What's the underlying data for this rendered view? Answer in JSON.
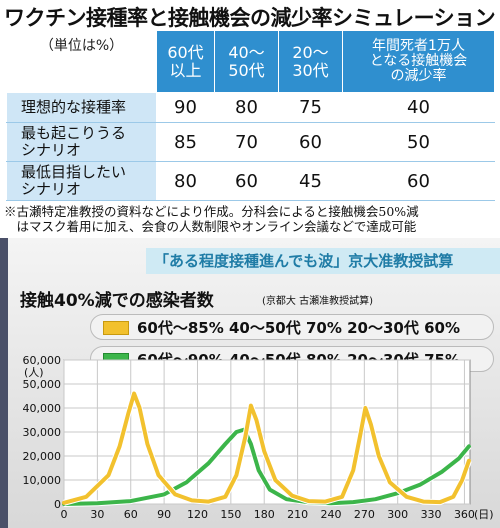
{
  "title": "ワクチン接種率と接触機会の減少率シミュレーション",
  "table": {
    "unit": "（単位は%）",
    "headers": [
      "60代\n以上",
      "40～\n50代",
      "20～\n30代",
      "年間死者1万人\nとなる接触機会\nの減少率"
    ],
    "rows": [
      {
        "label": "理想的な接種率",
        "values": [
          "90",
          "80",
          "75",
          "40"
        ]
      },
      {
        "label": "最も起こりうる\nシナリオ",
        "values": [
          "85",
          "70",
          "60",
          "50"
        ]
      },
      {
        "label": "最低目指したい\nシナリオ",
        "values": [
          "80",
          "60",
          "45",
          "60"
        ]
      }
    ]
  },
  "note": "※古瀬特定准教授の資料などにより作成。分科会によると接触機会50%減\n　はマスク着用に加え、会食の人数制限やオンライン会議などで達成可能",
  "caption": "「ある程度接種進んでも波」京大准教授試算",
  "chart_data": {
    "type": "line",
    "title": "接触40%減での感染者数",
    "source": "(京都大 古瀬准教授試算)",
    "ylabel": "(人)",
    "xlabel": "(日)",
    "ylim": [
      0,
      60000
    ],
    "xlim": [
      0,
      365
    ],
    "yticks": [
      "60,000",
      "50,000",
      "40,000",
      "30,000",
      "20,000",
      "10,000",
      "0"
    ],
    "xticks": [
      "0",
      "30",
      "60",
      "90",
      "120",
      "150",
      "180",
      "210",
      "240",
      "270",
      "300",
      "330",
      "360"
    ],
    "grid": true,
    "legend_placement": "top",
    "series": [
      {
        "name": "60代～85%  40～50代 70%  20～30代 60%",
        "color": "#f2c12e",
        "x": [
          0,
          20,
          40,
          50,
          58,
          63,
          68,
          75,
          85,
          100,
          115,
          130,
          145,
          155,
          163,
          168,
          173,
          180,
          190,
          205,
          220,
          235,
          250,
          260,
          266,
          271,
          276,
          283,
          293,
          308,
          323,
          338,
          350,
          358,
          364
        ],
        "y": [
          500,
          3000,
          12000,
          24000,
          38000,
          46000,
          40000,
          25000,
          12000,
          4000,
          1500,
          1000,
          3000,
          12000,
          28000,
          41000,
          35000,
          22000,
          10000,
          3500,
          1200,
          1000,
          3000,
          14000,
          28000,
          40000,
          33000,
          20000,
          9000,
          3000,
          1000,
          800,
          3000,
          10000,
          18000
        ]
      },
      {
        "name": "60代～90%  40～50代 80%  20～30代 75%",
        "color": "#3cb54a",
        "x": [
          0,
          30,
          60,
          90,
          110,
          130,
          145,
          155,
          162,
          168,
          175,
          185,
          200,
          220,
          240,
          260,
          280,
          300,
          320,
          340,
          355,
          364
        ],
        "y": [
          0,
          300,
          1200,
          4000,
          9000,
          17000,
          25000,
          30000,
          31000,
          25000,
          14000,
          6000,
          2000,
          700,
          300,
          800,
          2000,
          4500,
          8000,
          13500,
          19000,
          24000
        ]
      }
    ]
  }
}
